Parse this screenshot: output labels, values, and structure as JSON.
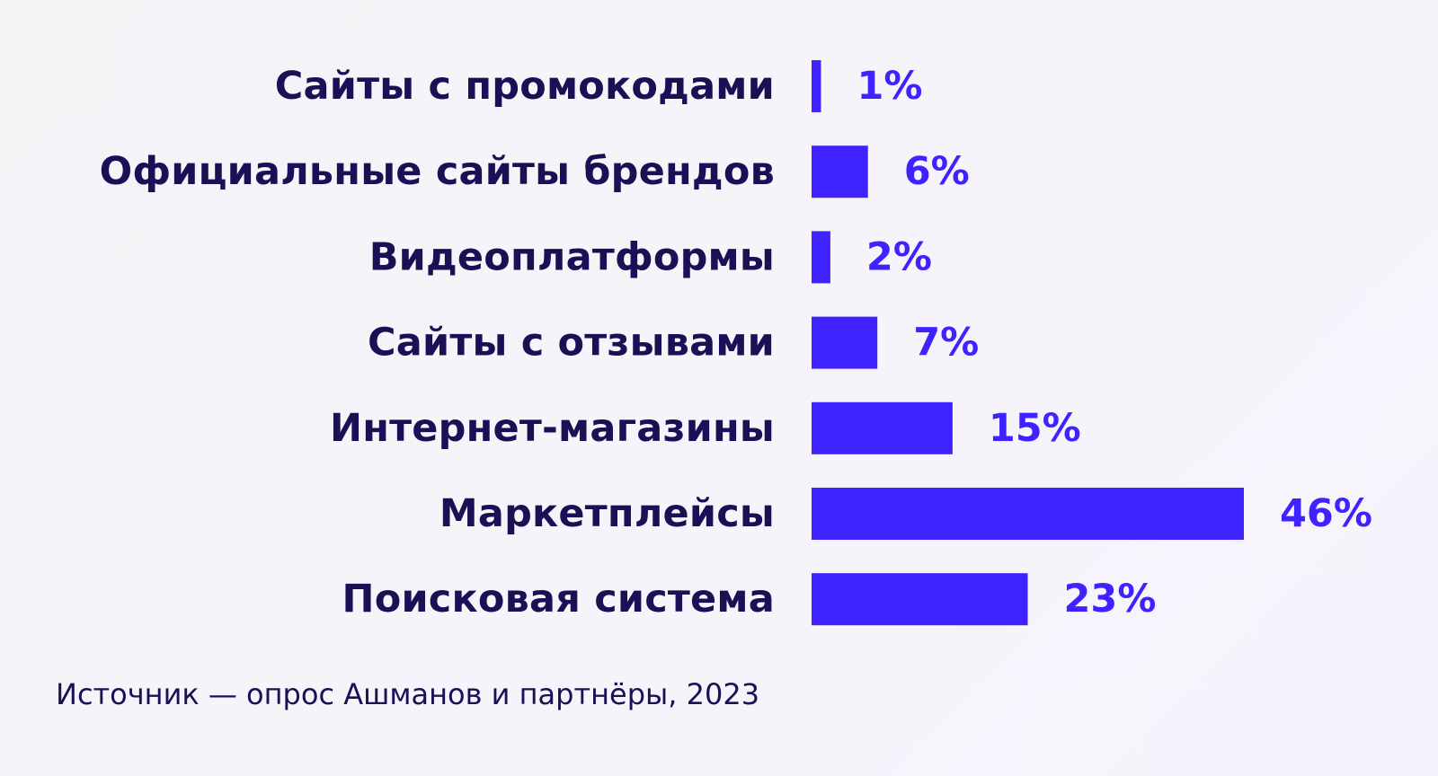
{
  "chart_data": {
    "type": "bar",
    "orientation": "horizontal",
    "categories": [
      "Сайты с промокодами",
      "Официальные сайты брендов",
      "Видеоплатформы",
      "Сайты с отзывами",
      "Интернет-магазины",
      "Маркетплейсы",
      "Поисковая система"
    ],
    "values": [
      1,
      6,
      2,
      7,
      15,
      46,
      23
    ],
    "value_labels": [
      "1%",
      "6%",
      "2%",
      "7%",
      "15%",
      "46%",
      "23%"
    ],
    "unit": "%",
    "xlim": [
      0,
      46
    ],
    "grid": false,
    "legend": "none",
    "bar_color": "#3e22ff",
    "label_color": "#1a1055",
    "value_color": "#3e22ff"
  },
  "source": "Источник — опрос Ашманов и партнёры, 2023"
}
